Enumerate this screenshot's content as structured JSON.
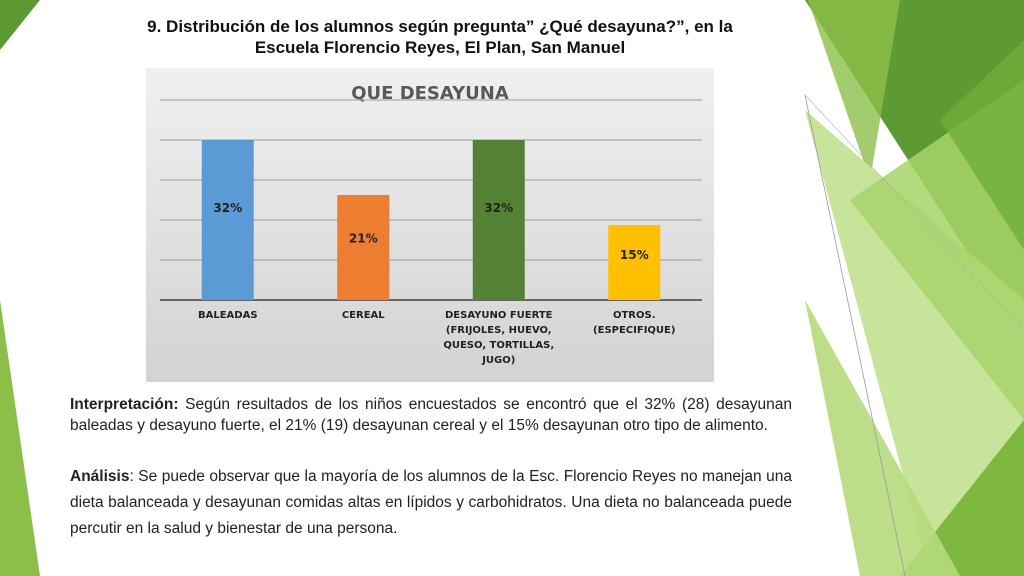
{
  "document": {
    "title_line1": "9. Distribución de los alumnos según pregunta” ¿Qué desayuna?”, en la",
    "title_line2": "Escuela Florencio Reyes, El Plan, San Manuel"
  },
  "chart_data": {
    "type": "bar",
    "title": "QUE DESAYUNA",
    "categories": [
      [
        "BALEADAS"
      ],
      [
        "CEREAL"
      ],
      [
        "DESAYUNO FUERTE",
        "(FRIJOLES, HUEVO,",
        "QUESO, TORTILLAS,",
        "JUGO)"
      ],
      [
        "OTROS.",
        "(ESPECIFIQUE)"
      ]
    ],
    "values": [
      32,
      21,
      32,
      15
    ],
    "data_labels": [
      "32%",
      "21%",
      "32%",
      "15%"
    ],
    "colors": [
      "#5b9bd5",
      "#ed7d31",
      "#548235",
      "#ffc000"
    ],
    "ylim": [
      0,
      40
    ],
    "grid": true,
    "legend": "none"
  },
  "interpretation": {
    "label": "Interpretación:",
    "text": " Según resultados de los niños encuestados se encontró que el 32% (28) desayunan baleadas y desayuno fuerte, el 21% (19) desayunan cereal y el 15% desayunan otro tipo de alimento."
  },
  "analysis": {
    "label": "Análisis",
    "text": ": Se puede observar que la mayoría de los alumnos de la Esc. Florencio Reyes no manejan una dieta balanceada y desayunan comidas altas en lípidos y carbohidratos. Una dieta no balanceada puede percutir en la salud y bienestar de una persona."
  }
}
